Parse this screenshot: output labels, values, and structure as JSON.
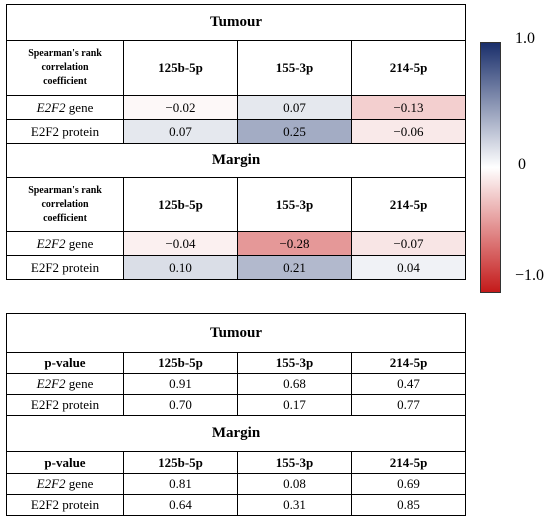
{
  "correlation_table": {
    "sections": [
      {
        "title": "Tumour",
        "header": [
          "Spearman's rank",
          "correlation",
          "coefficient"
        ],
        "columns": [
          "125b-5p",
          "155-3p",
          "214-5p"
        ],
        "rows": [
          {
            "italic": "E2F2",
            "rest": " gene",
            "values": [
              "−0.02",
              "0.07",
              "−0.13"
            ],
            "numbers": [
              -0.02,
              0.07,
              -0.13
            ]
          },
          {
            "italic": "",
            "rest": "E2F2 protein",
            "values": [
              "0.07",
              "0.25",
              "−0.06"
            ],
            "numbers": [
              0.07,
              0.25,
              -0.06
            ]
          }
        ]
      },
      {
        "title": "Margin",
        "header": [
          "Spearman's rank",
          "correlation",
          "coefficient"
        ],
        "columns": [
          "125b-5p",
          "155-3p",
          "214-5p"
        ],
        "rows": [
          {
            "italic": "E2F2",
            "rest": " gene",
            "values": [
              "−0.04",
              "−0.28",
              "−0.07"
            ],
            "numbers": [
              -0.04,
              -0.28,
              -0.07
            ]
          },
          {
            "italic": "",
            "rest": "E2F2 protein",
            "values": [
              "0.10",
              "0.21",
              "0.04"
            ],
            "numbers": [
              0.1,
              0.21,
              0.04
            ]
          }
        ]
      }
    ]
  },
  "pvalue_table": {
    "sections": [
      {
        "title": "Tumour",
        "header": "p-value",
        "columns": [
          "125b-5p",
          "155-3p",
          "214-5p"
        ],
        "rows": [
          {
            "italic": "E2F2",
            "rest": " gene",
            "values": [
              "0.91",
              "0.68",
              "0.47"
            ]
          },
          {
            "italic": "",
            "rest": "E2F2 protein",
            "values": [
              "0.70",
              "0.17",
              "0.77"
            ]
          }
        ]
      },
      {
        "title": "Margin",
        "header": "p-value",
        "columns": [
          "125b-5p",
          "155-3p",
          "214-5p"
        ],
        "rows": [
          {
            "italic": "E2F2",
            "rest": " gene",
            "values": [
              "0.81",
              "0.08",
              "0.69"
            ]
          },
          {
            "italic": "",
            "rest": "E2F2 protein",
            "values": [
              "0.64",
              "0.31",
              "0.85"
            ]
          }
        ]
      }
    ]
  },
  "colorbar": {
    "labels": [
      "1.0",
      "0",
      "−1.0"
    ],
    "colors": {
      "max": "#1a2f6b",
      "mid": "#ffffff",
      "min": "#c41a1a"
    }
  },
  "chart_data": [
    {
      "type": "heatmap",
      "title": "Tumour",
      "categories": [
        "125b-5p",
        "155-3p",
        "214-5p"
      ],
      "series": [
        {
          "name": "E2F2 gene",
          "values": [
            -0.02,
            0.07,
            -0.13
          ]
        },
        {
          "name": "E2F2 protein",
          "values": [
            0.07,
            0.25,
            -0.06
          ]
        }
      ],
      "ylim": [
        -1.0,
        1.0
      ]
    },
    {
      "type": "heatmap",
      "title": "Margin",
      "categories": [
        "125b-5p",
        "155-3p",
        "214-5p"
      ],
      "series": [
        {
          "name": "E2F2 gene",
          "values": [
            -0.04,
            -0.28,
            -0.07
          ]
        },
        {
          "name": "E2F2 protein",
          "values": [
            0.1,
            0.21,
            0.04
          ]
        }
      ],
      "ylim": [
        -1.0,
        1.0
      ]
    },
    {
      "type": "table",
      "title": "Tumour",
      "categories": [
        "125b-5p",
        "155-3p",
        "214-5p"
      ],
      "series": [
        {
          "name": "E2F2 gene",
          "values": [
            0.91,
            0.68,
            0.47
          ]
        },
        {
          "name": "E2F2 protein",
          "values": [
            0.7,
            0.17,
            0.77
          ]
        }
      ]
    },
    {
      "type": "table",
      "title": "Margin",
      "categories": [
        "125b-5p",
        "155-3p",
        "214-5p"
      ],
      "series": [
        {
          "name": "E2F2 gene",
          "values": [
            0.81,
            0.08,
            0.69
          ]
        },
        {
          "name": "E2F2 protein",
          "values": [
            0.64,
            0.31,
            0.85
          ]
        }
      ]
    }
  ]
}
